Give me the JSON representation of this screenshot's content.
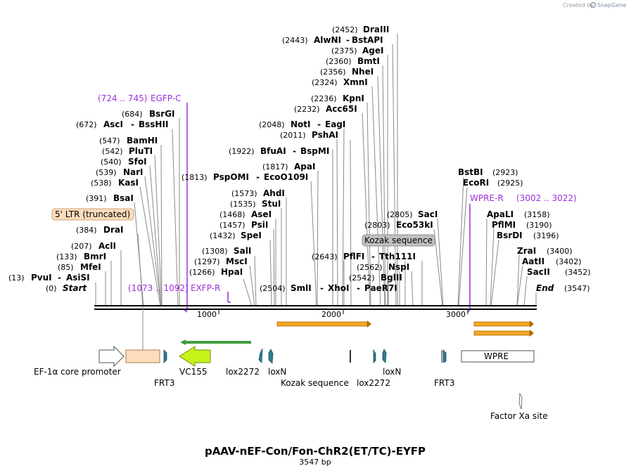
{
  "credit": {
    "prefix": "Created by",
    "brand": "SnapGene"
  },
  "title": "pAAV-nEF-Con/Fon-ChR2(ET/TC)-EYFP",
  "subtitle": "3547 bp",
  "sequence_length": 3547,
  "ruler_ticks": [
    "1000",
    "2000",
    "3000"
  ],
  "sites": [
    {
      "pos": "(2452)",
      "name": "DraIII"
    },
    {
      "pos": "(2443)",
      "name": "AlwNI",
      "name2": "BstAPI"
    },
    {
      "pos": "(2375)",
      "name": "AgeI"
    },
    {
      "pos": "(2360)",
      "name": "BmtI"
    },
    {
      "pos": "(2356)",
      "name": "NheI"
    },
    {
      "pos": "(2324)",
      "name": "XmnI"
    },
    {
      "pos": "(2236)",
      "name": "KpnI"
    },
    {
      "pos": "(2232)",
      "name": "Acc65I"
    },
    {
      "pos": "(684)",
      "name": "BsrGI"
    },
    {
      "pos": "(672)",
      "name": "AscI",
      "name2": "BssHII"
    },
    {
      "pos": "(2048)",
      "name": "NotI",
      "name2": "EagI"
    },
    {
      "pos": "(2011)",
      "name": "PshAI"
    },
    {
      "pos": "(547)",
      "name": "BamHI"
    },
    {
      "pos": "(542)",
      "name": "PluTI"
    },
    {
      "pos": "(1922)",
      "name": "BfuAI",
      "name2": "BspMI"
    },
    {
      "pos": "(540)",
      "name": "SfoI"
    },
    {
      "pos": "(1817)",
      "name": "ApaI"
    },
    {
      "pos": "(539)",
      "name": "NarI"
    },
    {
      "pos": "(1813)",
      "name": "PspOMI",
      "name2": "EcoO109I"
    },
    {
      "pos": "(2923)",
      "name": "BstBI"
    },
    {
      "pos": "(538)",
      "name": "KasI"
    },
    {
      "pos": "(2925)",
      "name": "EcoRI"
    },
    {
      "pos": "(1573)",
      "name": "AhdI"
    },
    {
      "pos": "(391)",
      "name": "BsaI"
    },
    {
      "pos": "(1535)",
      "name": "StuI"
    },
    {
      "pos": "(1468)",
      "name": "AseI"
    },
    {
      "pos": "(2805)",
      "name": "SacI"
    },
    {
      "pos": "(3158)",
      "name": "ApaLI"
    },
    {
      "pos": "(1457)",
      "name": "PsiI"
    },
    {
      "pos": "(2803)",
      "name": "Eco53kI"
    },
    {
      "pos": "(3190)",
      "name": "PflMI"
    },
    {
      "pos": "(384)",
      "name": "DraI"
    },
    {
      "pos": "(1432)",
      "name": "SpeI"
    },
    {
      "pos": "(3196)",
      "name": "BsrDI"
    },
    {
      "pos": "(207)",
      "name": "AclI"
    },
    {
      "pos": "(1308)",
      "name": "SalI"
    },
    {
      "pos": "(3400)",
      "name": "ZraI"
    },
    {
      "pos": "(2643)",
      "name": "PflFI",
      "name2": "Tth111I"
    },
    {
      "pos": "(133)",
      "name": "BmrI"
    },
    {
      "pos": "(1297)",
      "name": "MscI"
    },
    {
      "pos": "(3402)",
      "name": "AatII"
    },
    {
      "pos": "(2562)",
      "name": "NspI"
    },
    {
      "pos": "(85)",
      "name": "MfeI"
    },
    {
      "pos": "(1266)",
      "name": "HpaI"
    },
    {
      "pos": "(3452)",
      "name": "SacII"
    },
    {
      "pos": "(2542)",
      "name": "BglII"
    },
    {
      "pos": "(13)",
      "name": "PvuI",
      "name2": "AsiSI"
    },
    {
      "pos": "(0)",
      "name": "Start"
    },
    {
      "pos": "(2504)",
      "name": "SmlI",
      "name2": "XhoI",
      "name3": "PaeR7I"
    },
    {
      "pos": "(3547)",
      "name": "End"
    }
  ],
  "primers": [
    {
      "pos": "(724 .. 745)",
      "name": "EGFP-C"
    },
    {
      "pos": "(1073 .. 1092)",
      "name": "EXFP-R"
    },
    {
      "pos": "(3002 .. 3022)",
      "name": "WPRE-R"
    }
  ],
  "feature_labels": {
    "ltr": "5' LTR (truncated)",
    "kozak_box": "Kozak sequence",
    "ef1a": "EF-1α core promoter",
    "frt3_a": "FRT3",
    "vc155": "VC155",
    "lox2272_a": "lox2272",
    "loxn_a": "loxN",
    "kozak": "Kozak sequence",
    "lox2272_b": "lox2272",
    "loxn_b": "loxN",
    "frt3_b": "FRT3",
    "wpre": "WPRE",
    "factor_xa": "Factor Xa site"
  },
  "colors": {
    "primer": "#9b30d9",
    "orf_orange": "#f5a623",
    "vc155_fill": "#c6f21a",
    "green_arrow": "#3f9e3f",
    "frt_teal": "#2d7b8f",
    "ltr_fill": "#fbdcbd",
    "kozak_box_fill": "#c0c0c0"
  }
}
